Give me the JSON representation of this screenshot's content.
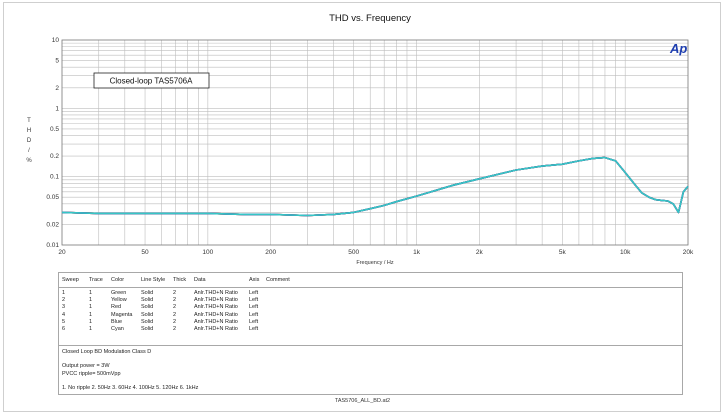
{
  "chart_data": {
    "type": "line",
    "title": "THD vs. Frequency",
    "xlabel": "Frequency / Hz",
    "ylabel": "THD / %",
    "xscale": "log",
    "yscale": "log",
    "xlim": [
      20,
      20000
    ],
    "ylim": [
      0.01,
      10
    ],
    "x_ticks": [
      20,
      50,
      100,
      200,
      500,
      1000,
      2000,
      5000,
      10000,
      20000
    ],
    "x_tick_labels": [
      "20",
      "50",
      "100",
      "200",
      "500",
      "1k",
      "2k",
      "5k",
      "10k",
      "20k"
    ],
    "y_ticks": [
      10,
      5,
      2,
      1,
      0.5,
      0.2,
      0.1,
      0.05,
      0.02,
      0.01
    ],
    "y_tick_labels": [
      "10",
      "5",
      "2",
      "1",
      "0.5",
      "0.2",
      "0.1",
      "0.05",
      "0.02",
      "0.01"
    ],
    "grid": true,
    "annotation": "Closed-loop TAS5706A",
    "logo": "Ap",
    "x": [
      20,
      30,
      50,
      80,
      100,
      150,
      200,
      300,
      400,
      500,
      600,
      700,
      800,
      1000,
      1500,
      2000,
      3000,
      4000,
      5000,
      6000,
      7000,
      8000,
      9000,
      10000,
      11000,
      12000,
      13000,
      14000,
      15000,
      16000,
      17000,
      18000,
      19000,
      20000
    ],
    "series": [
      {
        "color": "#2c8a3a",
        "values": [
          0.03,
          0.029,
          0.029,
          0.029,
          0.029,
          0.028,
          0.028,
          0.027,
          0.028,
          0.03,
          0.034,
          0.038,
          0.043,
          0.052,
          0.075,
          0.093,
          0.125,
          0.143,
          0.152,
          0.17,
          0.185,
          0.19,
          0.17,
          0.115,
          0.08,
          0.058,
          0.05,
          0.046,
          0.045,
          0.044,
          0.04,
          0.03,
          0.06,
          0.072
        ]
      },
      {
        "color": "#d6c30c",
        "values": [
          0.03,
          0.029,
          0.029,
          0.029,
          0.029,
          0.028,
          0.028,
          0.027,
          0.028,
          0.03,
          0.034,
          0.038,
          0.043,
          0.052,
          0.075,
          0.093,
          0.125,
          0.143,
          0.152,
          0.17,
          0.185,
          0.19,
          0.17,
          0.115,
          0.08,
          0.058,
          0.05,
          0.046,
          0.045,
          0.044,
          0.04,
          0.03,
          0.06,
          0.072
        ]
      },
      {
        "color": "#cc2a2a",
        "values": [
          0.03,
          0.029,
          0.029,
          0.029,
          0.029,
          0.028,
          0.028,
          0.027,
          0.028,
          0.03,
          0.034,
          0.038,
          0.043,
          0.052,
          0.075,
          0.093,
          0.125,
          0.143,
          0.152,
          0.17,
          0.185,
          0.19,
          0.17,
          0.115,
          0.08,
          0.058,
          0.05,
          0.046,
          0.045,
          0.044,
          0.04,
          0.03,
          0.06,
          0.072
        ]
      },
      {
        "color": "#c020c0",
        "values": [
          0.03,
          0.029,
          0.029,
          0.029,
          0.029,
          0.028,
          0.028,
          0.027,
          0.028,
          0.03,
          0.034,
          0.038,
          0.043,
          0.052,
          0.075,
          0.093,
          0.125,
          0.143,
          0.152,
          0.17,
          0.185,
          0.19,
          0.17,
          0.115,
          0.08,
          0.058,
          0.05,
          0.046,
          0.045,
          0.044,
          0.04,
          0.03,
          0.06,
          0.072
        ]
      },
      {
        "color": "#1f3fb0",
        "values": [
          0.03,
          0.029,
          0.029,
          0.029,
          0.029,
          0.028,
          0.028,
          0.027,
          0.028,
          0.03,
          0.034,
          0.038,
          0.043,
          0.052,
          0.075,
          0.093,
          0.125,
          0.143,
          0.152,
          0.17,
          0.185,
          0.19,
          0.17,
          0.115,
          0.08,
          0.058,
          0.05,
          0.046,
          0.045,
          0.044,
          0.04,
          0.03,
          0.06,
          0.072
        ]
      },
      {
        "color": "#35c6c6",
        "values": [
          0.03,
          0.029,
          0.029,
          0.029,
          0.029,
          0.028,
          0.028,
          0.027,
          0.028,
          0.03,
          0.034,
          0.038,
          0.043,
          0.052,
          0.075,
          0.093,
          0.125,
          0.143,
          0.152,
          0.17,
          0.185,
          0.19,
          0.17,
          0.115,
          0.08,
          0.058,
          0.05,
          0.046,
          0.045,
          0.044,
          0.04,
          0.03,
          0.06,
          0.072
        ]
      }
    ]
  },
  "table": {
    "headers": [
      "Sweep",
      "Trace",
      "Color",
      "Line Style",
      "Thick",
      "Data",
      "Axis",
      "Comment"
    ],
    "rows": [
      [
        "1",
        "1",
        "Green",
        "Solid",
        "2",
        "Anlr.THD+N Ratio",
        "Left",
        ""
      ],
      [
        "2",
        "1",
        "Yellow",
        "Solid",
        "2",
        "Anlr.THD+N Ratio",
        "Left",
        ""
      ],
      [
        "3",
        "1",
        "Red",
        "Solid",
        "2",
        "Anlr.THD+N Ratio",
        "Left",
        ""
      ],
      [
        "4",
        "1",
        "Magenta",
        "Solid",
        "2",
        "Anlr.THD+N Ratio",
        "Left",
        ""
      ],
      [
        "5",
        "1",
        "Blue",
        "Solid",
        "2",
        "Anlr.THD+N Ratio",
        "Left",
        ""
      ],
      [
        "6",
        "1",
        "Cyan",
        "Solid",
        "2",
        "Anlr.THD+N Ratio",
        "Left",
        ""
      ]
    ]
  },
  "notes": {
    "line1": "Closed Loop BD Modulation Class D",
    "line2": "Output power = 3W",
    "line3": "PVCC ripple= 500mVpp",
    "line4": "1. No ripple 2. 50Hz 3. 60Hz 4. 100Hz 5. 120Hz 6. 1kHz"
  },
  "footer": "TAS5706_ALL_BD.at2"
}
